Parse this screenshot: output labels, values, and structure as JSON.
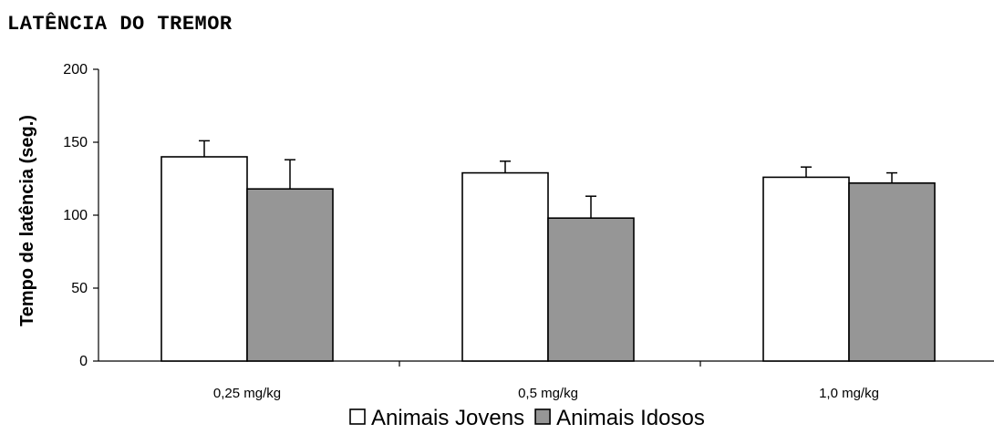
{
  "chart_data": {
    "type": "bar",
    "title": "LATÊNCIA DO TREMOR",
    "xlabel": "",
    "ylabel": "Tempo de latência (seg.)",
    "ylim": [
      0,
      200
    ],
    "yticks": [
      0,
      50,
      100,
      150,
      200
    ],
    "categories": [
      "0,25 mg/kg",
      "0,5 mg/kg",
      "1,0 mg/kg"
    ],
    "series": [
      {
        "name": "Animais Jovens",
        "color": "#ffffff",
        "values": [
          140,
          129,
          126
        ],
        "errors": [
          11,
          8,
          7
        ]
      },
      {
        "name": "Animais Idosos",
        "color": "#969696",
        "values": [
          118,
          98,
          122
        ],
        "errors": [
          20,
          15,
          7
        ]
      }
    ],
    "grid": false,
    "legend_position": "bottom-center"
  }
}
